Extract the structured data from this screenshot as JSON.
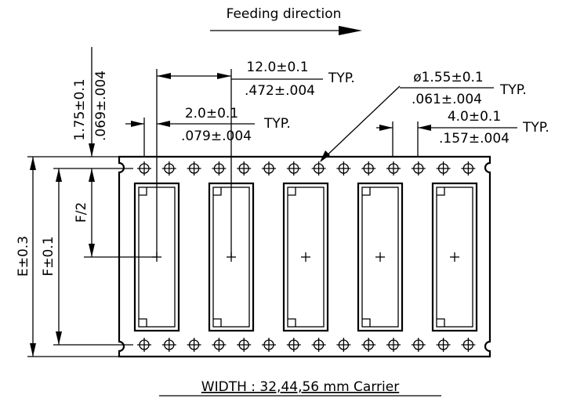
{
  "header": {
    "title": "Feeding direction"
  },
  "dimensions": {
    "pitch": {
      "metric": "12.0±0.1",
      "inch": ".472±.004",
      "note": "TYP."
    },
    "hole_to_pocket": {
      "metric": "2.0±0.1",
      "inch": ".079±.004",
      "note": "TYP."
    },
    "hole_diameter": {
      "metric": "ø1.55±0.1",
      "inch": ".061±.004",
      "note": "TYP."
    },
    "hole_pitch": {
      "metric": "4.0±0.1",
      "inch": ".157±.004",
      "note": "TYP."
    },
    "edge_to_hole": {
      "metric": "1.75±0.1",
      "inch": ".069±.004"
    },
    "half_f": "F/2",
    "tape_width": "E±0.3",
    "hole_row_distance": "F±0.1"
  },
  "caption": "WIDTH : 32,44,56 mm Carrier"
}
